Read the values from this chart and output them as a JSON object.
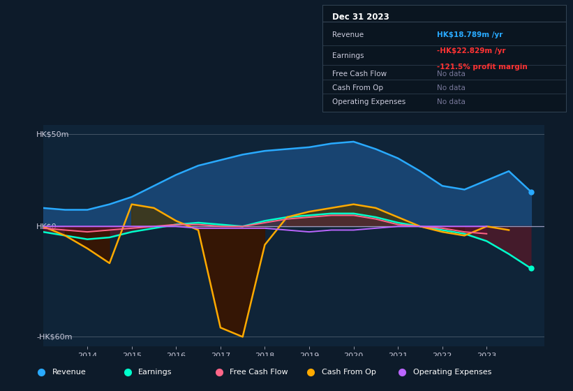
{
  "bg_color": "#0d1b2a",
  "chart_area_color": "#0f2438",
  "text_color": "#ccccdd",
  "revenue_color": "#29aaff",
  "earnings_color": "#00ffcc",
  "cash_from_op_color": "#ffaa00",
  "free_cash_flow_color": "#ff6688",
  "op_expenses_color": "#bb66ff",
  "revenue_fill": "#1a4878",
  "earnings_fill_pos": "#1a5a4a",
  "earnings_fill_neg": "#4a1a2a",
  "cfo_fill_neg": "#3a1500",
  "cfo_fill_pos": "#4a3500",
  "years": [
    2013.0,
    2013.5,
    2014.0,
    2014.5,
    2015.0,
    2015.5,
    2016.0,
    2016.5,
    2017.0,
    2017.5,
    2018.0,
    2018.5,
    2019.0,
    2019.5,
    2020.0,
    2020.5,
    2021.0,
    2021.5,
    2022.0,
    2022.5,
    2023.0,
    2023.5,
    2024.0
  ],
  "revenue": [
    10.0,
    9.0,
    9.0,
    12.0,
    16.0,
    22.0,
    28.0,
    33.0,
    36.0,
    39.0,
    41.0,
    42.0,
    43.0,
    45.0,
    46.0,
    42.0,
    37.0,
    30.0,
    22.0,
    20.0,
    25.0,
    30.0,
    18.789
  ],
  "earnings": [
    -3.0,
    -5.0,
    -7.0,
    -6.0,
    -3.0,
    -1.0,
    1.0,
    2.0,
    1.0,
    0.0,
    3.0,
    5.0,
    6.0,
    7.0,
    7.0,
    5.0,
    2.0,
    0.0,
    -2.0,
    -4.0,
    -8.0,
    -15.0,
    -22.829
  ],
  "cash_from_op": [
    0.0,
    -5.0,
    -12.0,
    -20.0,
    12.0,
    10.0,
    3.0,
    -2.0,
    -55.0,
    -60.0,
    -10.0,
    5.0,
    8.0,
    10.0,
    12.0,
    10.0,
    5.0,
    0.0,
    -3.0,
    -5.0,
    0.0,
    -2.0,
    null
  ],
  "free_cash_flow": [
    -1.0,
    -2.0,
    -3.0,
    -2.0,
    -1.0,
    0.0,
    1.0,
    1.0,
    0.0,
    0.0,
    2.0,
    4.0,
    5.0,
    6.0,
    6.0,
    4.0,
    1.0,
    0.0,
    -1.0,
    -3.0,
    -4.0,
    null,
    null
  ],
  "op_expenses": [
    0.0,
    0.0,
    0.0,
    0.0,
    0.0,
    0.0,
    0.0,
    -1.0,
    -1.0,
    -1.0,
    -1.0,
    -2.0,
    -3.0,
    -2.0,
    -2.0,
    -1.0,
    0.0,
    0.0,
    0.0,
    0.0,
    0.0,
    null,
    null
  ],
  "xlim": [
    2013.0,
    2024.3
  ],
  "ylim": [
    -65,
    55
  ],
  "xticks": [
    2014,
    2015,
    2016,
    2017,
    2018,
    2019,
    2020,
    2021,
    2022,
    2023
  ],
  "info_title": "Dec 31 2023",
  "info_rows": [
    {
      "label": "Revenue",
      "value": "HK$18.789m /yr",
      "value_color": "#29aaff",
      "sub": "",
      "sub_color": ""
    },
    {
      "label": "Earnings",
      "value": "-HK$22.829m /yr",
      "value_color": "#ff3333",
      "sub": "-121.5% profit margin",
      "sub_color": "#ff3333"
    },
    {
      "label": "Free Cash Flow",
      "value": "No data",
      "value_color": "#777799",
      "sub": "",
      "sub_color": ""
    },
    {
      "label": "Cash From Op",
      "value": "No data",
      "value_color": "#777799",
      "sub": "",
      "sub_color": ""
    },
    {
      "label": "Operating Expenses",
      "value": "No data",
      "value_color": "#777799",
      "sub": "",
      "sub_color": ""
    }
  ],
  "legend_items": [
    [
      "Revenue",
      "#29aaff"
    ],
    [
      "Earnings",
      "#00ffcc"
    ],
    [
      "Free Cash Flow",
      "#ff6688"
    ],
    [
      "Cash From Op",
      "#ffaa00"
    ],
    [
      "Operating Expenses",
      "#bb66ff"
    ]
  ]
}
